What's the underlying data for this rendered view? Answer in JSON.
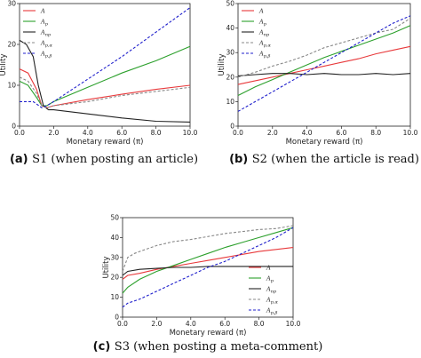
{
  "chart_data": [
    {
      "type": "line",
      "caption_prefix": "(a)",
      "caption_text": "S1 (when posting an article)",
      "xlabel": "Monetary reward (π)",
      "ylabel": "Utility",
      "xlim": [
        0,
        10
      ],
      "ylim": [
        0,
        30
      ],
      "x_ticks": [
        "0.0",
        "2.0",
        "4.0",
        "6.0",
        "8.0",
        "10.0"
      ],
      "y_ticks": [
        "0",
        "10",
        "20",
        "30"
      ],
      "legend_position": "top-left",
      "series": [
        {
          "name": "A",
          "color": "#e8393b",
          "dash": "solid",
          "x": [
            0,
            0.5,
            1.0,
            1.3,
            1.6,
            2,
            4,
            6,
            8,
            10
          ],
          "y": [
            14,
            13,
            9,
            5,
            4.5,
            5,
            6.5,
            7.8,
            9,
            10
          ]
        },
        {
          "name": "Ap",
          "color": "#2ca02c",
          "dash": "solid",
          "x": [
            0,
            0.5,
            1.0,
            1.3,
            1.6,
            2,
            4,
            6,
            8,
            10
          ],
          "y": [
            11,
            10,
            7,
            5,
            5,
            6,
            9.5,
            13,
            16,
            19.5
          ]
        },
        {
          "name": "Anp",
          "color": "#222222",
          "dash": "solid",
          "x": [
            0,
            0.4,
            0.8,
            1.1,
            1.4,
            1.7,
            2,
            4,
            6,
            8,
            10
          ],
          "y": [
            21,
            20,
            17,
            10,
            5,
            4,
            4,
            3,
            2,
            1.2,
            1
          ]
        },
        {
          "name": "Ap,α",
          "color": "#888888",
          "dash": "dashed",
          "x": [
            0,
            0.5,
            1.0,
            1.3,
            1.6,
            2,
            4,
            6,
            8,
            10
          ],
          "y": [
            12,
            11,
            8,
            5,
            4.5,
            5,
            6,
            7.5,
            8.5,
            9.5
          ]
        },
        {
          "name": "Ap,β",
          "color": "#1f1fcc",
          "dash": "dashed",
          "x": [
            0,
            0.8,
            1.3,
            1.6,
            2,
            4,
            6,
            8,
            10
          ],
          "y": [
            6,
            6,
            4.5,
            5,
            6,
            11.5,
            17,
            23,
            29
          ]
        }
      ]
    },
    {
      "type": "line",
      "caption_prefix": "(b)",
      "caption_text": "S2 (when the article is read)",
      "xlabel": "Monetary reward (π)",
      "ylabel": "Utility",
      "xlim": [
        0,
        10
      ],
      "ylim": [
        0,
        50
      ],
      "x_ticks": [
        "0.0",
        "2.0",
        "4.0",
        "6.0",
        "8.0",
        "10.0"
      ],
      "y_ticks": [
        "0",
        "10",
        "20",
        "30",
        "40",
        "50"
      ],
      "legend_position": "top-left",
      "series": [
        {
          "name": "A",
          "color": "#e8393b",
          "dash": "solid",
          "x": [
            0,
            1,
            2,
            3,
            4,
            5,
            6,
            7,
            8,
            9,
            10
          ],
          "y": [
            17,
            18.5,
            20,
            21.5,
            23,
            24.5,
            26,
            27.5,
            29.5,
            31,
            32.5
          ]
        },
        {
          "name": "Ap",
          "color": "#2ca02c",
          "dash": "solid",
          "x": [
            0,
            1,
            2,
            3,
            4,
            5,
            6,
            7,
            8,
            9,
            10
          ],
          "y": [
            12.5,
            16,
            19,
            22,
            25,
            28,
            30.5,
            33,
            35.5,
            38,
            41
          ]
        },
        {
          "name": "Anp",
          "color": "#222222",
          "dash": "solid",
          "x": [
            0,
            1,
            2,
            3,
            4,
            5,
            6,
            7,
            8,
            9,
            10
          ],
          "y": [
            20.5,
            21,
            21.5,
            21.5,
            21,
            21.5,
            21,
            21,
            21.5,
            21,
            21.5
          ]
        },
        {
          "name": "Ap,α",
          "color": "#888888",
          "dash": "dashed",
          "x": [
            0,
            1,
            2,
            3,
            4,
            5,
            6,
            7,
            8,
            9,
            10
          ],
          "y": [
            20,
            22,
            24.5,
            26.5,
            29,
            32,
            34,
            36,
            38,
            39.5,
            44
          ]
        },
        {
          "name": "Ap,β",
          "color": "#1f1fcc",
          "dash": "dashed",
          "x": [
            0,
            1,
            2,
            3,
            4,
            5,
            6,
            7,
            8,
            9,
            10
          ],
          "y": [
            6,
            10,
            14,
            18,
            22,
            26,
            30,
            34,
            38,
            42,
            45
          ]
        }
      ]
    },
    {
      "type": "line",
      "caption_prefix": "(c)",
      "caption_text": "S3 (when posting a meta-comment)",
      "xlabel": "Monetary reward (π)",
      "ylabel": "Utility",
      "xlim": [
        0,
        10
      ],
      "ylim": [
        0,
        50
      ],
      "x_ticks": [
        "0.0",
        "2.0",
        "4.0",
        "6.0",
        "8.0",
        "10.0"
      ],
      "y_ticks": [
        "0",
        "10",
        "20",
        "30",
        "40",
        "50"
      ],
      "legend_position": "lower-right",
      "series": [
        {
          "name": "A",
          "color": "#e8393b",
          "dash": "solid",
          "x": [
            0,
            0.3,
            1,
            2,
            3,
            4,
            5,
            6,
            7,
            8,
            9,
            10
          ],
          "y": [
            19,
            21,
            22,
            24,
            25.5,
            27,
            28.5,
            30,
            31.5,
            33,
            34,
            35
          ]
        },
        {
          "name": "Ap",
          "color": "#2ca02c",
          "dash": "solid",
          "x": [
            0,
            0.3,
            1,
            2,
            3,
            4,
            5,
            6,
            7,
            8,
            9,
            10
          ],
          "y": [
            12,
            15,
            19,
            23,
            26,
            29,
            32,
            35,
            37.5,
            40,
            42.5,
            45
          ]
        },
        {
          "name": "Anp",
          "color": "#222222",
          "dash": "solid",
          "x": [
            0,
            0.3,
            1,
            2,
            3,
            4,
            5,
            6,
            7,
            8,
            9,
            10
          ],
          "y": [
            21,
            23,
            24,
            24.5,
            25,
            25,
            25.5,
            25.5,
            25.5,
            25.5,
            25.5,
            25.5
          ]
        },
        {
          "name": "Ap,α",
          "color": "#888888",
          "dash": "dashed",
          "x": [
            0,
            0.3,
            0.7,
            1,
            2,
            3,
            4,
            5,
            6,
            7,
            8,
            9,
            10
          ],
          "y": [
            23,
            30,
            32,
            33,
            36,
            38,
            39,
            40.5,
            42,
            43,
            44,
            44.5,
            46
          ]
        },
        {
          "name": "Ap,β",
          "color": "#1f1fcc",
          "dash": "dashed",
          "x": [
            0,
            0.3,
            1,
            2,
            3,
            4,
            5,
            6,
            7,
            8,
            9,
            10
          ],
          "y": [
            5,
            7,
            9,
            13,
            17,
            21,
            25,
            28,
            32,
            36,
            40,
            45
          ]
        }
      ]
    }
  ]
}
